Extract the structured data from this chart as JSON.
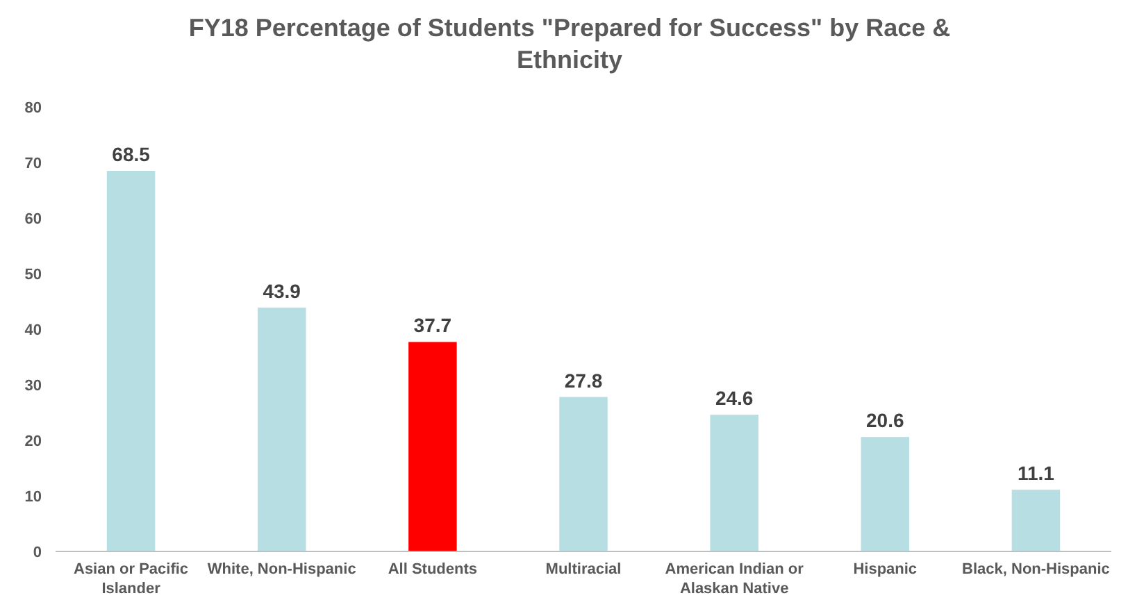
{
  "chart_data": {
    "type": "bar",
    "title": "FY18 Percentage of Students \"Prepared for Success\" by Race & Ethnicity",
    "categories": [
      "Asian or Pacific Islander",
      "White, Non-Hispanic",
      "All Students",
      "Multiracial",
      "American Indian or Alaskan Native",
      "Hispanic",
      "Black, Non-Hispanic"
    ],
    "values": [
      68.5,
      43.9,
      37.7,
      27.8,
      24.6,
      20.6,
      11.1
    ],
    "colors": [
      "#b7dee2",
      "#b7dee2",
      "#ff0000",
      "#b7dee2",
      "#b7dee2",
      "#b7dee2",
      "#b7dee2"
    ],
    "ylim": [
      0,
      80
    ],
    "yticks": [
      0,
      10,
      20,
      30,
      40,
      50,
      60,
      70,
      80
    ],
    "grid": false,
    "data_labels": true
  }
}
